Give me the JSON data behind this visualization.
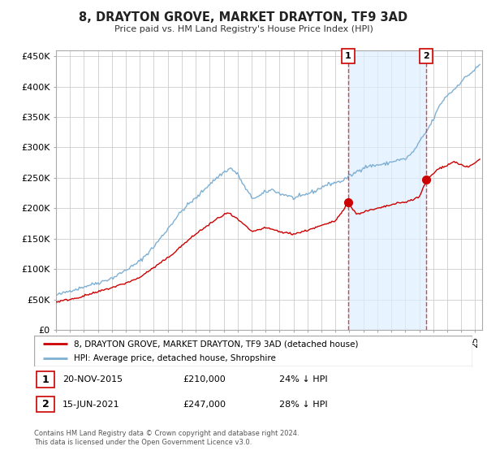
{
  "title": "8, DRAYTON GROVE, MARKET DRAYTON, TF9 3AD",
  "subtitle": "Price paid vs. HM Land Registry's House Price Index (HPI)",
  "ylim": [
    0,
    460000
  ],
  "yticks": [
    0,
    50000,
    100000,
    150000,
    200000,
    250000,
    300000,
    350000,
    400000,
    450000
  ],
  "xlim_min": 1995.0,
  "xlim_max": 2025.5,
  "sale1_x": 2015.9,
  "sale1_y": 210000,
  "sale1_date": "20-NOV-2015",
  "sale1_price": "£210,000",
  "sale1_hpi": "24% ↓ HPI",
  "sale2_x": 2021.5,
  "sale2_y": 247000,
  "sale2_date": "15-JUN-2021",
  "sale2_price": "£247,000",
  "sale2_hpi": "28% ↓ HPI",
  "red_line_color": "#cc0000",
  "blue_line_color": "#7eb0d4",
  "shade_color": "#ddeeff",
  "vline_color": "#dd4444",
  "background_color": "#ffffff",
  "legend_label_red": "8, DRAYTON GROVE, MARKET DRAYTON, TF9 3AD (detached house)",
  "legend_label_blue": "HPI: Average price, detached house, Shropshire",
  "footer1": "Contains HM Land Registry data © Crown copyright and database right 2024.",
  "footer2": "This data is licensed under the Open Government Licence v3.0.",
  "ann1_label": "1",
  "ann2_label": "2"
}
